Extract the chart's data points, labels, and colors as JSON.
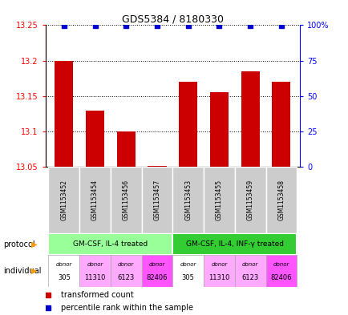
{
  "title": "GDS5384 / 8180330",
  "samples": [
    "GSM1153452",
    "GSM1153454",
    "GSM1153456",
    "GSM1153457",
    "GSM1153453",
    "GSM1153455",
    "GSM1153459",
    "GSM1153458"
  ],
  "bar_values": [
    13.2,
    13.13,
    13.1,
    13.052,
    13.17,
    13.155,
    13.185,
    13.17
  ],
  "ymin": 13.05,
  "ymax": 13.25,
  "yticks": [
    13.05,
    13.1,
    13.15,
    13.2,
    13.25
  ],
  "ytick_labels": [
    "13.05",
    "13.1",
    "13.15",
    "13.2",
    "13.25"
  ],
  "right_yticks": [
    0,
    25,
    50,
    75,
    100
  ],
  "right_ytick_labels": [
    "0",
    "25",
    "50",
    "75",
    "100%"
  ],
  "bar_color": "#cc0000",
  "dot_color": "#0000cc",
  "protocol_groups": [
    {
      "label": "GM-CSF, IL-4 treated",
      "start": 0,
      "end": 3,
      "color": "#99ff99"
    },
    {
      "label": "GM-CSF, IL-4, INF-γ treated",
      "start": 4,
      "end": 7,
      "color": "#33cc33"
    }
  ],
  "individual_colors": [
    "#ffffff",
    "#ffaaff",
    "#ffaaff",
    "#ff55ff",
    "#ffffff",
    "#ffaaff",
    "#ffaaff",
    "#ff55ff"
  ],
  "individual_labels": [
    [
      "donor",
      "305"
    ],
    [
      "donor",
      "11310"
    ],
    [
      "donor",
      "6123"
    ],
    [
      "donor",
      "82406"
    ],
    [
      "donor",
      "305"
    ],
    [
      "donor",
      "11310"
    ],
    [
      "donor",
      "6123"
    ],
    [
      "donor",
      "82406"
    ]
  ],
  "protocol_label": "protocol",
  "individual_label": "individual",
  "legend_bar_label": "transformed count",
  "legend_dot_label": "percentile rank within the sample",
  "sample_bg_color": "#cccccc",
  "arrow_color": "#ff9900"
}
